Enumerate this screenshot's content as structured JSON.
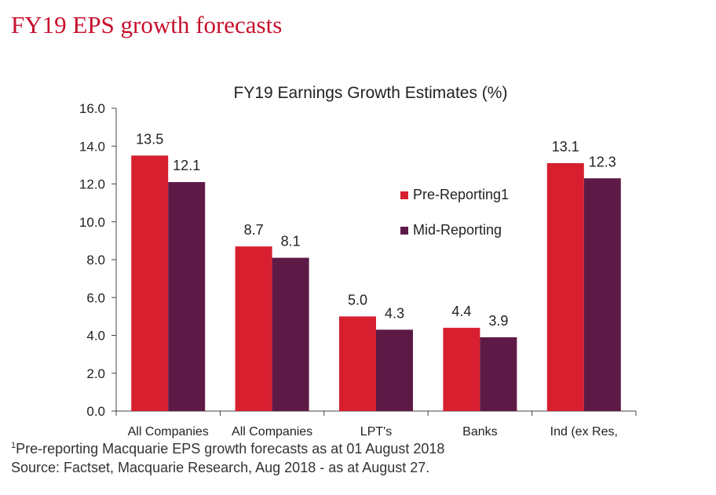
{
  "page_title": "FY19 EPS growth forecasts",
  "chart_data": {
    "type": "bar",
    "title": "FY19 Earnings Growth Estimates (%)",
    "xlabel": "",
    "ylabel": "",
    "ylim": [
      0,
      16
    ],
    "yticks": [
      "0.0",
      "2.0",
      "4.0",
      "6.0",
      "8.0",
      "10.0",
      "12.0",
      "14.0",
      "16.0"
    ],
    "categories": [
      "All Companies",
      "All Companies",
      "LPT's",
      "Banks",
      "Ind (ex Res,"
    ],
    "series": [
      {
        "name": "Pre-Reporting1",
        "color": "#d71f30",
        "values": [
          13.5,
          8.7,
          5.0,
          4.4,
          13.1
        ],
        "labels": [
          "13.5",
          "8.7",
          "5.0",
          "4.4",
          "13.1"
        ]
      },
      {
        "name": "Mid-Reporting",
        "color": "#5e1a47",
        "values": [
          12.1,
          8.1,
          4.3,
          3.9,
          12.3
        ],
        "labels": [
          "12.1",
          "8.1",
          "4.3",
          "3.9",
          "12.3"
        ]
      }
    ],
    "legend": "top-right",
    "grid": false
  },
  "footnotes": {
    "marker": "1",
    "note": "Pre-reporting Macquarie EPS growth forecasts as at 01 August 2018",
    "source": "Source: Factset, Macquarie Research, Aug 2018 - as at August 27."
  }
}
